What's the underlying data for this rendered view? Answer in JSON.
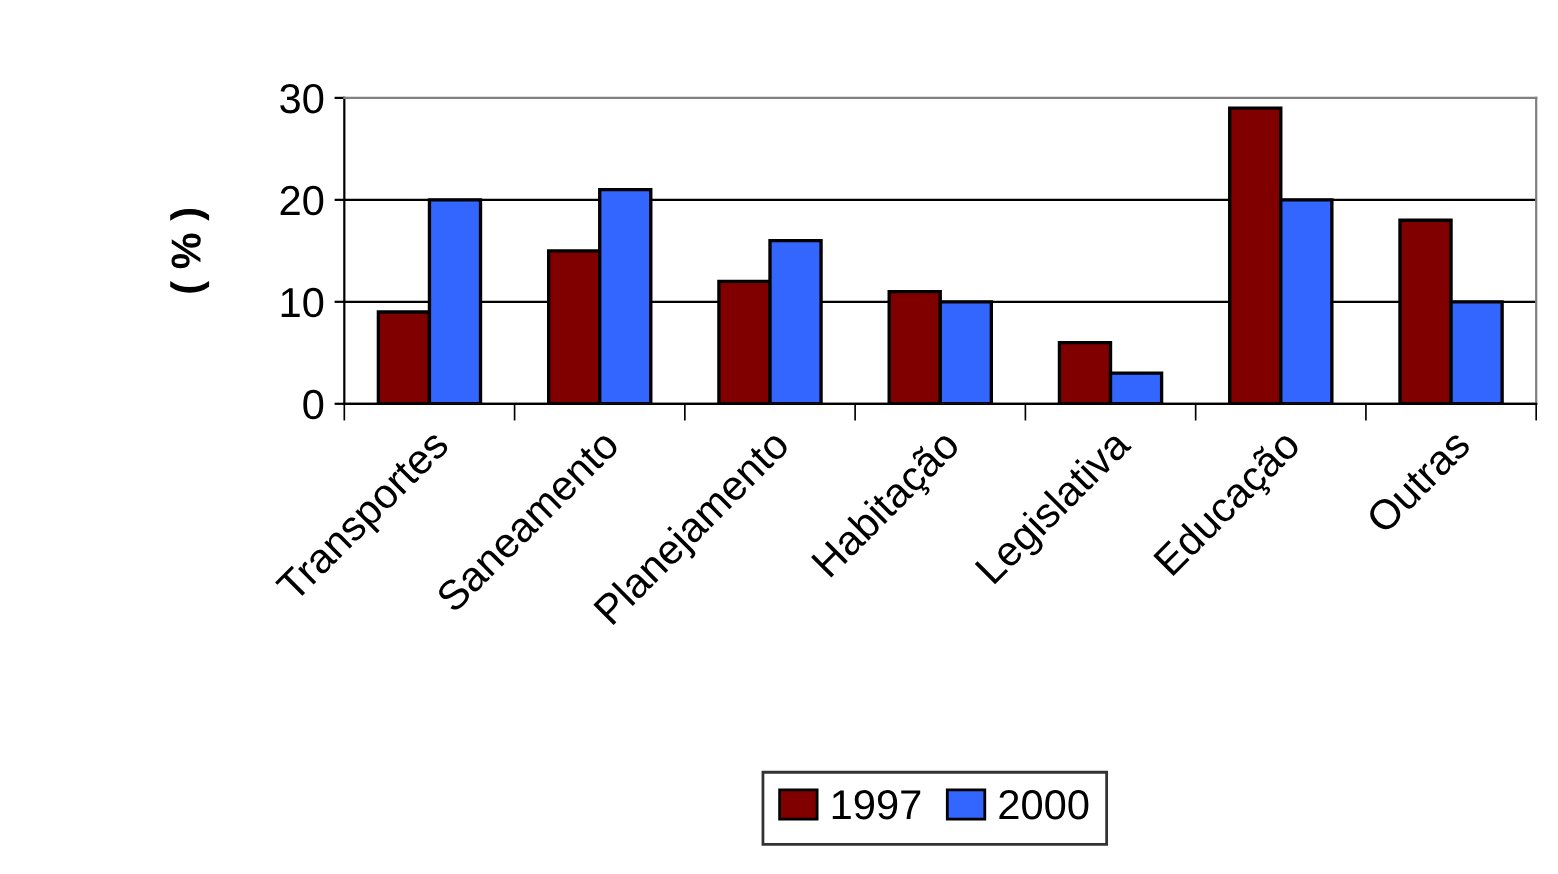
{
  "chart_data": {
    "type": "bar",
    "ylabel": "( % )",
    "categories": [
      "Transportes",
      "Saneamento",
      "Planejamento",
      "Habitação",
      "Legislativa",
      "Educação",
      "Outras"
    ],
    "series": [
      {
        "name": "1997",
        "color": "#800000",
        "values": [
          9,
          15,
          12,
          11,
          6,
          29,
          18
        ]
      },
      {
        "name": "2000",
        "color": "#3366ff",
        "values": [
          20,
          21,
          16,
          10,
          3,
          20,
          10
        ]
      }
    ],
    "ylim": [
      0,
      30
    ],
    "yticks": [
      0,
      10,
      20,
      30
    ],
    "grid": "y",
    "legend": "bottom"
  }
}
